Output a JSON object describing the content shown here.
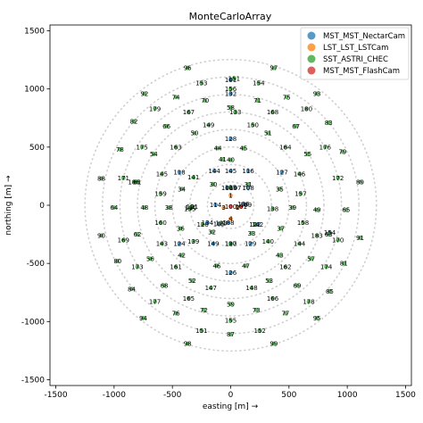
{
  "chart_data": {
    "type": "scatter",
    "title": "MonteCarloArray",
    "xlabel": "easting [m]  →",
    "ylabel": "northing [m]  →",
    "xlim": [
      -1550,
      1550
    ],
    "ylim": [
      -1550,
      1550
    ],
    "xticks": [
      -1500,
      -1000,
      -500,
      0,
      500,
      1000,
      1500
    ],
    "yticks": [
      -1500,
      -1000,
      -500,
      0,
      500,
      1000,
      1500
    ],
    "legend_position": "top-right",
    "background_rings": [
      200,
      350,
      500,
      650,
      800,
      950,
      1100,
      1250
    ],
    "series": [
      {
        "name": "MST_MST_NectarCam",
        "color": "#1f77b4",
        "points": [
          {
            "label": "106",
            "x": -30,
            "y": 150
          },
          {
            "label": "107",
            "x": 40,
            "y": 150
          },
          {
            "label": "108",
            "x": 150,
            "y": 150
          },
          {
            "label": "114",
            "x": -130,
            "y": 5
          },
          {
            "label": "109",
            "x": 130,
            "y": 5
          },
          {
            "label": "128",
            "x": 0,
            "y": 570
          },
          {
            "label": "145",
            "x": 0,
            "y": 295
          },
          {
            "label": "144",
            "x": -140,
            "y": 295
          },
          {
            "label": "116",
            "x": 150,
            "y": 295
          },
          {
            "label": "118",
            "x": -440,
            "y": 285
          },
          {
            "label": "127",
            "x": 440,
            "y": 285
          },
          {
            "label": "132",
            "x": 0,
            "y": 960
          },
          {
            "label": "124",
            "x": -440,
            "y": -330
          },
          {
            "label": "134",
            "x": -200,
            "y": -150
          },
          {
            "label": "142",
            "x": 230,
            "y": -165
          },
          {
            "label": "130",
            "x": 0,
            "y": -330
          },
          {
            "label": "129",
            "x": 170,
            "y": -330
          },
          {
            "label": "149",
            "x": -150,
            "y": -330
          },
          {
            "label": "126",
            "x": 0,
            "y": -580
          },
          {
            "label": "154",
            "x": 850,
            "y": -235
          },
          {
            "label": "188",
            "x": -20,
            "y": -150
          },
          {
            "label": "101",
            "x": 0,
            "y": 1080
          },
          {
            "label": "105",
            "x": -100,
            "y": -160
          },
          {
            "label": "136",
            "x": 110,
            "y": 10
          }
        ]
      },
      {
        "name": "LST_LST_LSTCam",
        "color": "#ff7f0e",
        "points": [
          {
            "label": "1",
            "x": 0,
            "y": 85
          },
          {
            "label": "2",
            "x": 60,
            "y": -20
          },
          {
            "label": "3",
            "x": -60,
            "y": -20
          },
          {
            "label": "4",
            "x": 0,
            "y": -115
          }
        ]
      },
      {
        "name": "SST_ASTRI_CHEC",
        "color": "#2ca02c",
        "points": [
          {
            "label": "96",
            "x": -370,
            "y": 1180
          },
          {
            "label": "97",
            "x": 370,
            "y": 1180
          },
          {
            "label": "151",
            "x": 30,
            "y": 1090
          },
          {
            "label": "153",
            "x": -250,
            "y": 1050
          },
          {
            "label": "154",
            "x": 240,
            "y": 1050
          },
          {
            "label": "156",
            "x": 0,
            "y": 1000
          },
          {
            "label": "92",
            "x": -740,
            "y": 960
          },
          {
            "label": "93",
            "x": 740,
            "y": 960
          },
          {
            "label": "74",
            "x": -470,
            "y": 930
          },
          {
            "label": "75",
            "x": 480,
            "y": 930
          },
          {
            "label": "70",
            "x": -220,
            "y": 900
          },
          {
            "label": "71",
            "x": 230,
            "y": 900
          },
          {
            "label": "179",
            "x": -650,
            "y": 830
          },
          {
            "label": "180",
            "x": 650,
            "y": 830
          },
          {
            "label": "58",
            "x": 0,
            "y": 840
          },
          {
            "label": "167",
            "x": -360,
            "y": 800
          },
          {
            "label": "133",
            "x": 40,
            "y": 800
          },
          {
            "label": "168",
            "x": 360,
            "y": 800
          },
          {
            "label": "82",
            "x": -830,
            "y": 720
          },
          {
            "label": "83",
            "x": 840,
            "y": 710
          },
          {
            "label": "66",
            "x": -550,
            "y": 680
          },
          {
            "label": "67",
            "x": 560,
            "y": 680
          },
          {
            "label": "149",
            "x": -190,
            "y": 690
          },
          {
            "label": "150",
            "x": 190,
            "y": 690
          },
          {
            "label": "50",
            "x": -310,
            "y": 620
          },
          {
            "label": "51",
            "x": 320,
            "y": 620
          },
          {
            "label": "175",
            "x": -760,
            "y": 500
          },
          {
            "label": "176",
            "x": 810,
            "y": 500
          },
          {
            "label": "78",
            "x": -950,
            "y": 480
          },
          {
            "label": "79",
            "x": 960,
            "y": 460
          },
          {
            "label": "163",
            "x": -470,
            "y": 500
          },
          {
            "label": "164",
            "x": 470,
            "y": 500
          },
          {
            "label": "44",
            "x": -110,
            "y": 490
          },
          {
            "label": "45",
            "x": 110,
            "y": 490
          },
          {
            "label": "54",
            "x": -660,
            "y": 440
          },
          {
            "label": "55",
            "x": 660,
            "y": 440
          },
          {
            "label": "40",
            "x": 0,
            "y": 390
          },
          {
            "label": "88",
            "x": -1110,
            "y": 230
          },
          {
            "label": "89",
            "x": 1110,
            "y": 200
          },
          {
            "label": "171",
            "x": -920,
            "y": 235
          },
          {
            "label": "172",
            "x": 920,
            "y": 235
          },
          {
            "label": "141",
            "x": -320,
            "y": 240
          },
          {
            "label": "146",
            "x": 590,
            "y": 270
          },
          {
            "label": "145",
            "x": -590,
            "y": 270
          },
          {
            "label": "186",
            "x": -830,
            "y": 200
          },
          {
            "label": "30",
            "x": -150,
            "y": 180
          },
          {
            "label": "31",
            "x": 150,
            "y": 180
          },
          {
            "label": "34",
            "x": -420,
            "y": 140
          },
          {
            "label": "35",
            "x": 420,
            "y": 140
          },
          {
            "label": "159",
            "x": -600,
            "y": 100
          },
          {
            "label": "157",
            "x": 600,
            "y": 100
          },
          {
            "label": "64",
            "x": -1000,
            "y": -20
          },
          {
            "label": "65",
            "x": 990,
            "y": -40
          },
          {
            "label": "48",
            "x": -740,
            "y": -20
          },
          {
            "label": "49",
            "x": 740,
            "y": -40
          },
          {
            "label": "38",
            "x": -530,
            "y": -20
          },
          {
            "label": "39",
            "x": 530,
            "y": -20
          },
          {
            "label": "135",
            "x": -350,
            "y": -30
          },
          {
            "label": "138",
            "x": 360,
            "y": -30
          },
          {
            "label": "110",
            "x": -340,
            "y": -20
          },
          {
            "label": "160",
            "x": -600,
            "y": -150
          },
          {
            "label": "158",
            "x": 620,
            "y": -150
          },
          {
            "label": "36",
            "x": -430,
            "y": -200
          },
          {
            "label": "37",
            "x": 430,
            "y": -200
          },
          {
            "label": "32",
            "x": -160,
            "y": -230
          },
          {
            "label": "33",
            "x": 180,
            "y": -240
          },
          {
            "label": "90",
            "x": -1110,
            "y": -260
          },
          {
            "label": "91",
            "x": 1110,
            "y": -280
          },
          {
            "label": "169",
            "x": -920,
            "y": -300
          },
          {
            "label": "170",
            "x": 920,
            "y": -300
          },
          {
            "label": "62",
            "x": -800,
            "y": -250
          },
          {
            "label": "63",
            "x": 840,
            "y": -250
          },
          {
            "label": "143",
            "x": -590,
            "y": -330
          },
          {
            "label": "144",
            "x": 590,
            "y": -330
          },
          {
            "label": "139",
            "x": -320,
            "y": -310
          },
          {
            "label": "140",
            "x": 320,
            "y": -310
          },
          {
            "label": "42",
            "x": -420,
            "y": -430
          },
          {
            "label": "43",
            "x": 420,
            "y": -430
          },
          {
            "label": "80",
            "x": -970,
            "y": -480
          },
          {
            "label": "81",
            "x": 970,
            "y": -500
          },
          {
            "label": "56",
            "x": -690,
            "y": -460
          },
          {
            "label": "57",
            "x": 690,
            "y": -460
          },
          {
            "label": "173",
            "x": -800,
            "y": -530
          },
          {
            "label": "174",
            "x": 820,
            "y": -530
          },
          {
            "label": "161",
            "x": -470,
            "y": -530
          },
          {
            "label": "162",
            "x": 470,
            "y": -530
          },
          {
            "label": "46",
            "x": -120,
            "y": -520
          },
          {
            "label": "47",
            "x": 130,
            "y": -520
          },
          {
            "label": "52",
            "x": -330,
            "y": -650
          },
          {
            "label": "53",
            "x": 330,
            "y": -650
          },
          {
            "label": "84",
            "x": -850,
            "y": -720
          },
          {
            "label": "85",
            "x": 850,
            "y": -740
          },
          {
            "label": "68",
            "x": -570,
            "y": -690
          },
          {
            "label": "69",
            "x": 570,
            "y": -690
          },
          {
            "label": "147",
            "x": -170,
            "y": -710
          },
          {
            "label": "148",
            "x": 180,
            "y": -710
          },
          {
            "label": "165",
            "x": -360,
            "y": -800
          },
          {
            "label": "166",
            "x": 360,
            "y": -800
          },
          {
            "label": "177",
            "x": -650,
            "y": -830
          },
          {
            "label": "178",
            "x": 670,
            "y": -830
          },
          {
            "label": "59",
            "x": 0,
            "y": -850
          },
          {
            "label": "72",
            "x": -230,
            "y": -900
          },
          {
            "label": "73",
            "x": 220,
            "y": -900
          },
          {
            "label": "76",
            "x": -470,
            "y": -930
          },
          {
            "label": "77",
            "x": 470,
            "y": -930
          },
          {
            "label": "94",
            "x": -750,
            "y": -970
          },
          {
            "label": "95",
            "x": 740,
            "y": -970
          },
          {
            "label": "155",
            "x": 0,
            "y": -990
          },
          {
            "label": "151",
            "x": -250,
            "y": -1080
          },
          {
            "label": "152",
            "x": 250,
            "y": -1080
          },
          {
            "label": "87",
            "x": 0,
            "y": -1110
          },
          {
            "label": "98",
            "x": -370,
            "y": -1190
          },
          {
            "label": "99",
            "x": 370,
            "y": -1190
          },
          {
            "label": "183",
            "x": 740,
            "y": -260
          },
          {
            "label": "41",
            "x": -70,
            "y": 395
          },
          {
            "label": "61",
            "x": -800,
            "y": 200
          },
          {
            "label": "125",
            "x": 0,
            "y": 155
          },
          {
            "label": "123",
            "x": -80,
            "y": -155
          },
          {
            "label": "120",
            "x": -240,
            "y": -165
          },
          {
            "label": "122",
            "x": 210,
            "y": -165
          },
          {
            "label": "121",
            "x": -330,
            "y": -10
          },
          {
            "label": "127",
            "x": 0,
            "y": -330
          }
        ]
      },
      {
        "name": "MST_MST_FlashCam",
        "color": "#d62728",
        "points": [
          {
            "label": "100",
            "x": 0,
            "y": -10
          },
          {
            "label": "101",
            "x": 90,
            "y": -10
          }
        ]
      }
    ]
  }
}
